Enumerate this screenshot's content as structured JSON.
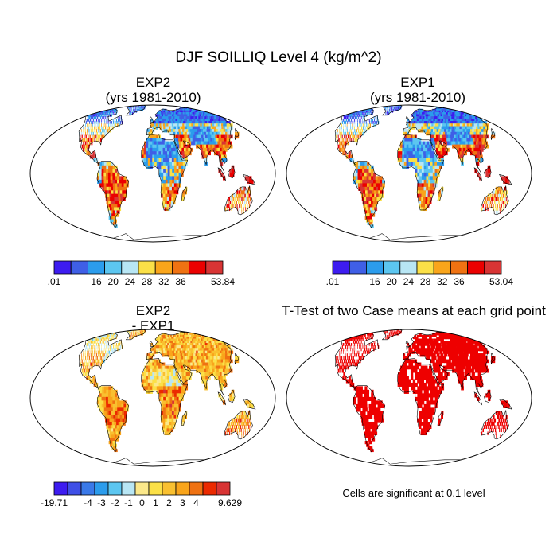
{
  "title": "DJF SOILLIQ Level 4 (kg/m^2)",
  "panels": [
    {
      "id": "exp2",
      "title_line1": "EXP2",
      "title_line2": "(yrs 1981-2010)"
    },
    {
      "id": "exp1",
      "title_line1": "EXP1",
      "title_line2": "(yrs 1981-2010)"
    },
    {
      "id": "diff",
      "title_line1": "EXP2",
      "title_line2": "- EXP1"
    },
    {
      "id": "ttest",
      "title_line1": "T-Test of two Case means at each grid point"
    }
  ],
  "colorbars": {
    "exp2": {
      "colors": [
        "#3d1cf0",
        "#3f5fe6",
        "#2b9cec",
        "#5cc6f0",
        "#b8e6f4",
        "#fbe047",
        "#f9a51b",
        "#ef7212",
        "#eb0000",
        "#d83434"
      ],
      "labels": [
        ".01",
        "16",
        "20",
        "24",
        "28",
        "32",
        "36",
        "53.84"
      ]
    },
    "exp1": {
      "colors": [
        "#3d1cf0",
        "#3f5fe6",
        "#2b9cec",
        "#5cc6f0",
        "#b8e6f4",
        "#fbe047",
        "#f9a51b",
        "#ef7212",
        "#eb0000",
        "#d83434"
      ],
      "labels": [
        ".01",
        "16",
        "20",
        "24",
        "28",
        "32",
        "36",
        "53.04"
      ]
    },
    "diff": {
      "colors": [
        "#3d1cf0",
        "#3f4fe6",
        "#3a79e8",
        "#2b9cec",
        "#5cc6f0",
        "#b8e6f4",
        "#fbe88a",
        "#fbe047",
        "#f9c030",
        "#f9a51b",
        "#ef7212",
        "#eb2a00",
        "#d83434"
      ],
      "labels": [
        "-19.71",
        "-4",
        "-3",
        "-2",
        "-1",
        "0",
        "1",
        "2",
        "3",
        "4",
        "9.629"
      ]
    }
  },
  "significance_note": "Cells are significant at 0.1 level",
  "palette": {
    "wet_blue": "#3d3de8",
    "ocean": "#ffffff",
    "significant_red": "#ee0000"
  }
}
